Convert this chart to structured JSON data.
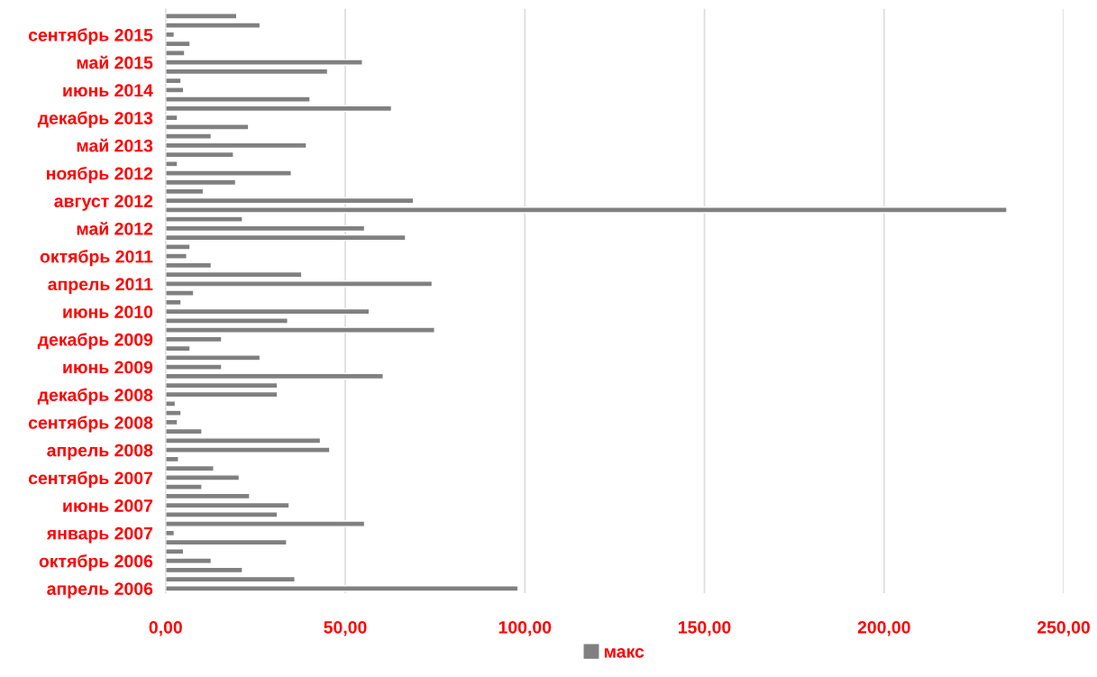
{
  "chart_data": {
    "type": "bar",
    "orientation": "horizontal",
    "categories": [
      null,
      null,
      "сентябрь 2015",
      null,
      null,
      "май 2015",
      null,
      null,
      "июнь 2014",
      null,
      null,
      "декабрь 2013",
      null,
      null,
      "май 2013",
      null,
      null,
      "ноябрь 2012",
      null,
      null,
      "август 2012",
      null,
      null,
      "май 2012",
      null,
      null,
      "октябрь 2011",
      null,
      null,
      "апрель 2011",
      null,
      null,
      "июнь 2010",
      null,
      null,
      "декабрь 2009",
      null,
      null,
      "июнь 2009",
      null,
      null,
      "декабрь 2008",
      null,
      null,
      "сентябрь 2008",
      null,
      null,
      "апрель 2008",
      null,
      null,
      "сентябрь 2007",
      null,
      null,
      "июнь 2007",
      null,
      null,
      "январь 2007",
      null,
      null,
      "октябрь 2006",
      null,
      null,
      "апрель 2006"
    ],
    "series": [
      {
        "name": "макс",
        "color": "#808080",
        "values": [
          19.8,
          26.3,
          2.4,
          6.8,
          5.3,
          54.8,
          45.1,
          4.3,
          5.0,
          40.2,
          62.9,
          3.3,
          23.1,
          12.7,
          39.2,
          18.9,
          3.3,
          35.0,
          19.5,
          10.5,
          69.0,
          234.2,
          21.4,
          55.4,
          66.8,
          6.8,
          5.9,
          12.7,
          37.9,
          74.2,
          7.8,
          4.3,
          56.7,
          34.0,
          74.9,
          15.6,
          6.8,
          26.3,
          15.6,
          60.6,
          31.1,
          31.1,
          2.7,
          4.3,
          3.3,
          10.1,
          43.1,
          45.7,
          3.6,
          13.4,
          20.5,
          10.1,
          23.4,
          34.4,
          31.1,
          55.4,
          2.4,
          33.7,
          5.0,
          12.7,
          21.4,
          36.0,
          98.1
        ]
      }
    ],
    "xlim": [
      0,
      250
    ],
    "xticks": [
      {
        "value": 0,
        "label": "0,00"
      },
      {
        "value": 50,
        "label": "50,00"
      },
      {
        "value": 100,
        "label": "100,00"
      },
      {
        "value": 150,
        "label": "150,00"
      },
      {
        "value": 200,
        "label": "200,00"
      },
      {
        "value": 250,
        "label": "250,00"
      }
    ],
    "grid": "x",
    "legend": "bottom"
  }
}
